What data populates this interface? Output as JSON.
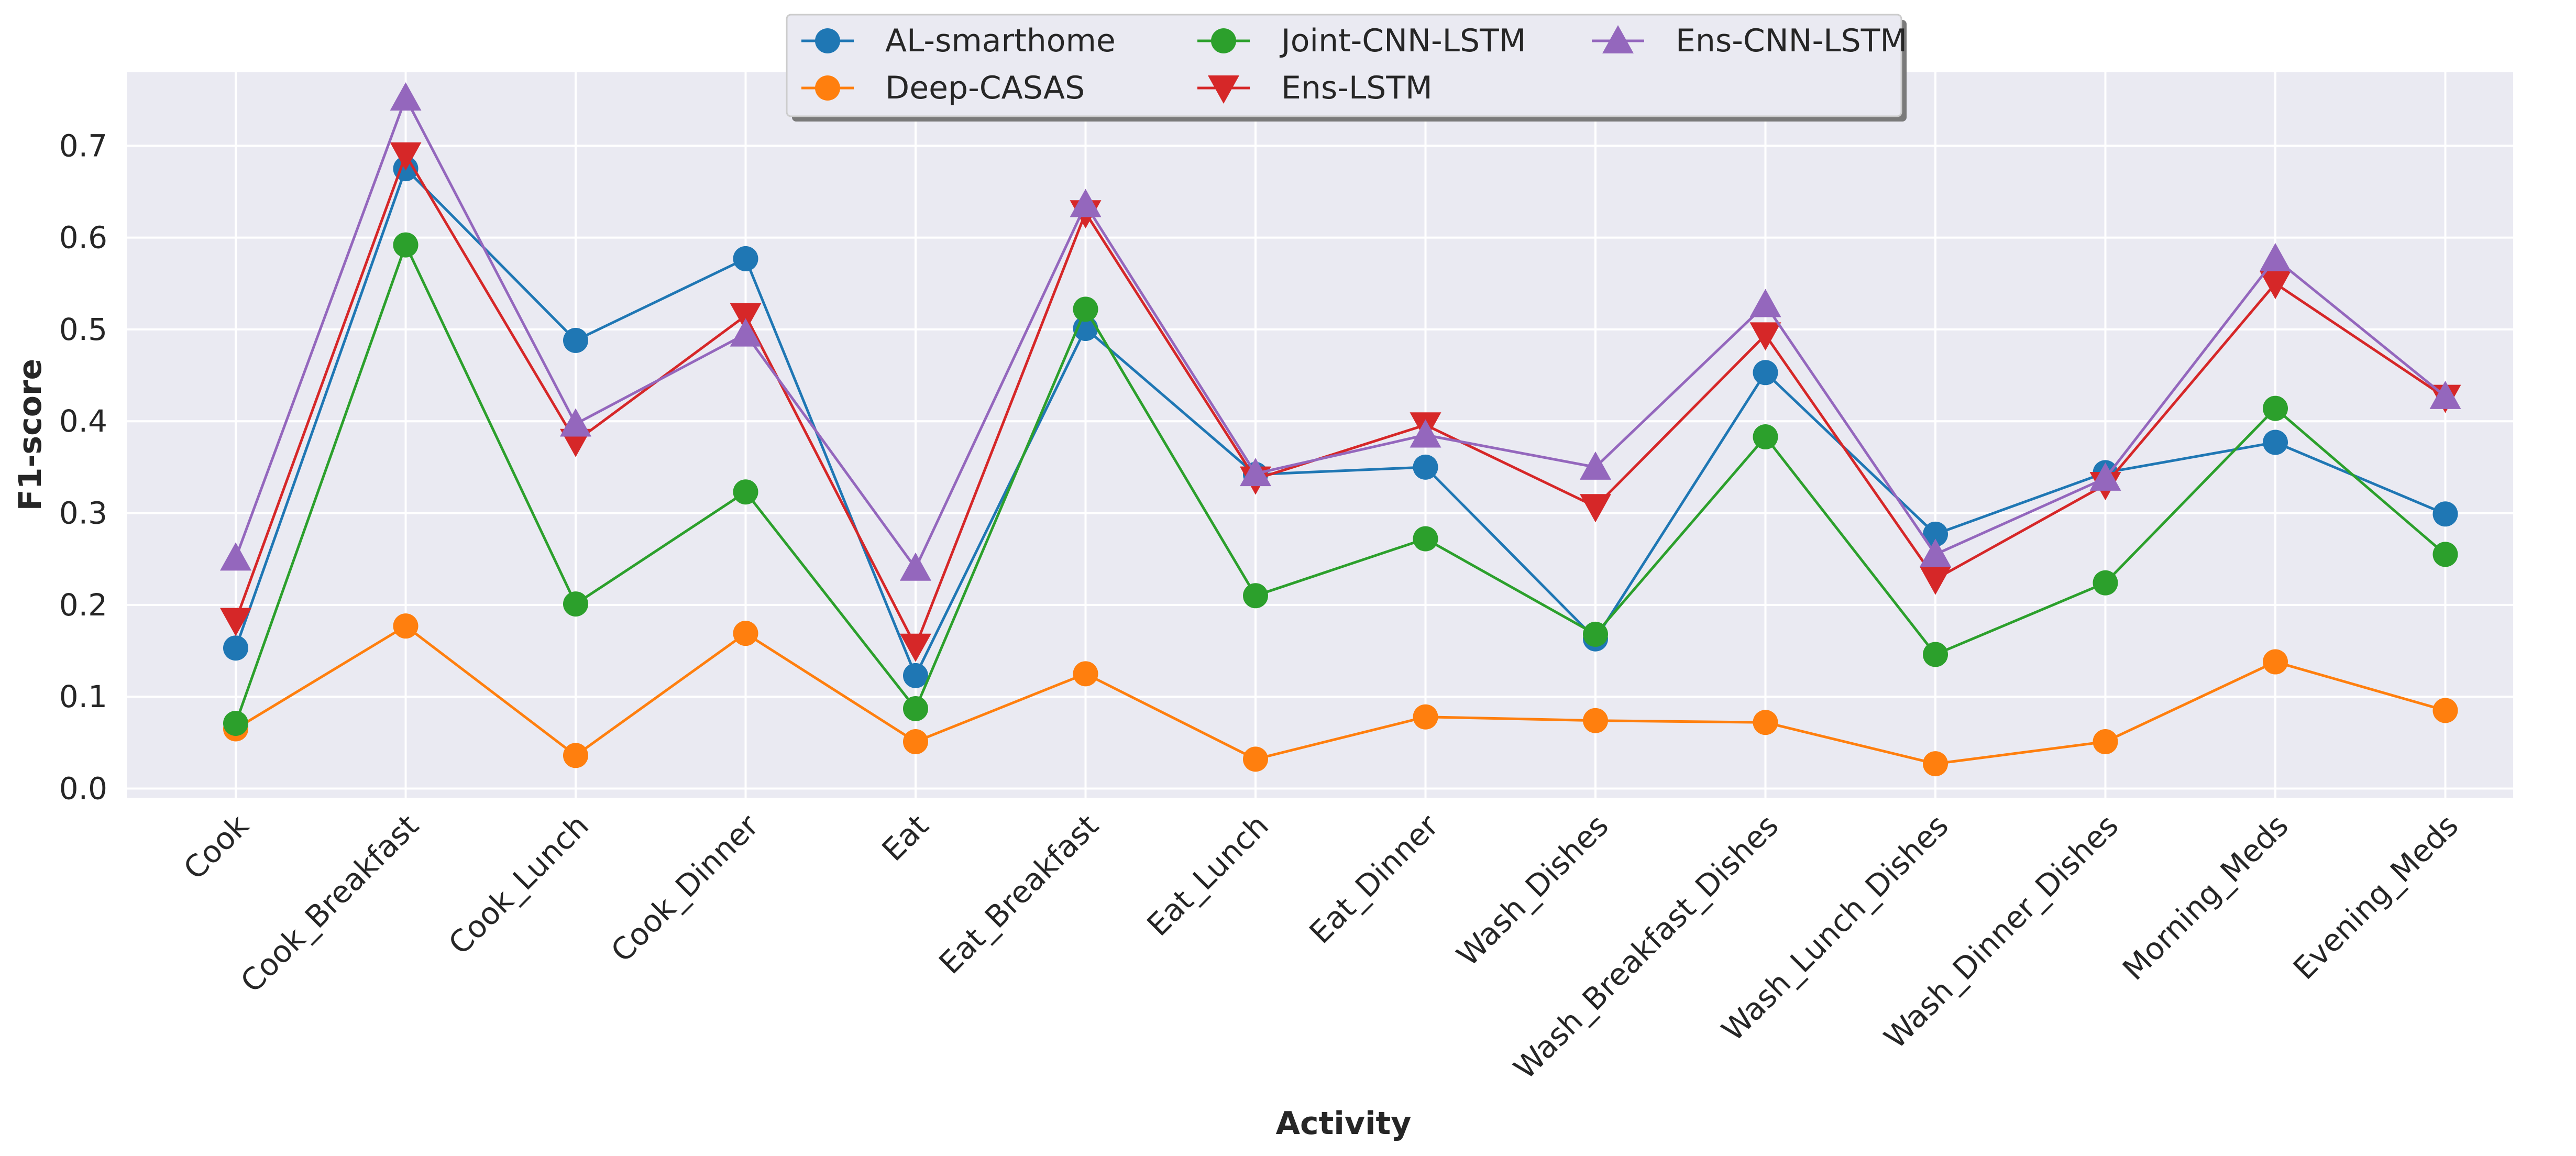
{
  "chart_data": {
    "type": "line",
    "title": "",
    "xlabel": "Activity",
    "ylabel": "F1-score",
    "ylim": [
      -0.01,
      0.78
    ],
    "yticks": [
      "0.0",
      "0.1",
      "0.2",
      "0.3",
      "0.4",
      "0.5",
      "0.6",
      "0.7"
    ],
    "grid": true,
    "legend_position": "top-center",
    "categories": [
      "Cook",
      "Cook_Breakfast",
      "Cook_Lunch",
      "Cook_Dinner",
      "Eat",
      "Eat_Breakfast",
      "Eat_Lunch",
      "Eat_Dinner",
      "Wash_Dishes",
      "Wash_Breakfast_Dishes",
      "Wash_Lunch_Dishes",
      "Wash_Dinner_Dishes",
      "Morning_Meds",
      "Evening_Meds"
    ],
    "series": [
      {
        "name": "AL-smarthome",
        "color": "#1f77b4",
        "marker": "circle",
        "values": [
          0.153,
          0.675,
          0.488,
          0.577,
          0.123,
          0.501,
          0.342,
          0.35,
          0.163,
          0.453,
          0.277,
          0.344,
          0.377,
          0.299
        ]
      },
      {
        "name": "Deep-CASAS",
        "color": "#ff7f0e",
        "marker": "circle",
        "values": [
          0.065,
          0.177,
          0.036,
          0.169,
          0.051,
          0.125,
          0.032,
          0.078,
          0.074,
          0.072,
          0.027,
          0.051,
          0.138,
          0.085
        ]
      },
      {
        "name": "Joint-CNN-LSTM",
        "color": "#2ca02c",
        "marker": "circle",
        "values": [
          0.071,
          0.592,
          0.201,
          0.323,
          0.087,
          0.522,
          0.21,
          0.272,
          0.168,
          0.383,
          0.146,
          0.224,
          0.414,
          0.255
        ]
      },
      {
        "name": "Ens-LSTM",
        "color": "#d62728",
        "marker": "triangle-down",
        "values": [
          0.183,
          0.69,
          0.378,
          0.515,
          0.155,
          0.627,
          0.337,
          0.396,
          0.307,
          0.494,
          0.228,
          0.331,
          0.55,
          0.426
        ]
      },
      {
        "name": "Ens-CNN-LSTM",
        "color": "#9467bd",
        "marker": "triangle-up",
        "values": [
          0.251,
          0.752,
          0.397,
          0.495,
          0.24,
          0.636,
          0.343,
          0.385,
          0.35,
          0.527,
          0.255,
          0.338,
          0.577,
          0.427
        ]
      }
    ]
  }
}
